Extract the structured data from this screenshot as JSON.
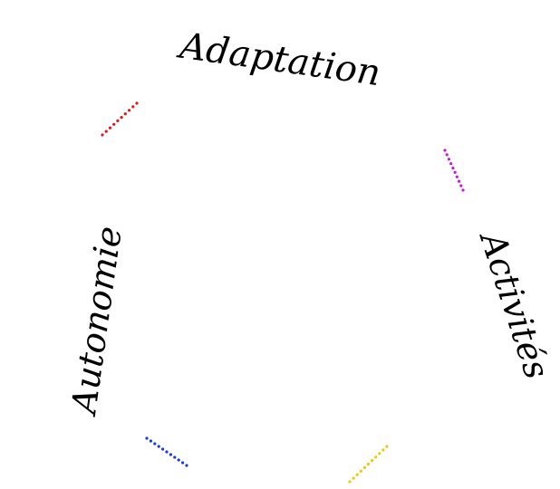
{
  "labels": {
    "top": "Adaptation",
    "right": "Activités",
    "left": "Autonomie"
  },
  "accents": [
    {
      "name": "red",
      "color": "#e0151b"
    },
    {
      "name": "magenta",
      "color": "#c51ad8"
    },
    {
      "name": "yellow",
      "color": "#f2c70a"
    },
    {
      "name": "blue",
      "color": "#1c3bdb"
    }
  ]
}
